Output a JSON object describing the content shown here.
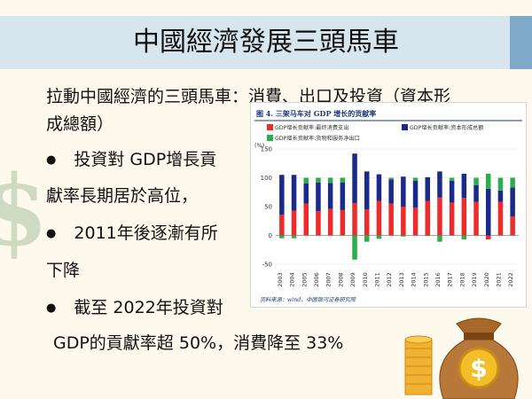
{
  "slide": {
    "title": "中國經濟發展三頭馬車",
    "intro_line1": "拉動中國經濟的三頭馬車：消費、出口及投資（資本形",
    "intro_line2": "成總額）",
    "bullet_symbol": "●",
    "bullet1_line1": "投資對 GDP增長貢",
    "bullet1_line2": "獻率長期居於高位，",
    "bullet2_line1": "2011年後逐漸有所",
    "bullet2_line2": "下降",
    "bullet3_line1": "截至 2022年投資對",
    "bullet3_line2": "GDP的貢獻率超 50%，消費降至 33%"
  },
  "colors": {
    "header_bar": "#d7e5ef",
    "consumption": "#ee2a2a",
    "investment": "#1a2a8c",
    "exports": "#2aae4a"
  },
  "icons": [
    "dollar-sign-icon",
    "money-bag-icon",
    "coin-stack-icon"
  ],
  "chart_data": {
    "type": "bar",
    "title": "图 4. 三架马车对 GDP 增长的贡献率",
    "ylabel": "(%)",
    "ylim": [
      -50,
      150
    ],
    "yticks": [
      -50,
      0,
      50,
      100,
      150
    ],
    "source": "资料来源：wind，中国银河证券研究院",
    "legend_position": "top",
    "categories": [
      "2003",
      "2004",
      "2005",
      "2006",
      "2007",
      "2008",
      "2009",
      "2010",
      "2011",
      "2012",
      "2013",
      "2014",
      "2015",
      "2016",
      "2017",
      "2018",
      "2019",
      "2020",
      "2021",
      "2022"
    ],
    "series": [
      {
        "name": "GDP增长贡献率:最终消费支出",
        "values": [
          36,
          43,
          55,
          42,
          46,
          44,
          56,
          45,
          60,
          55,
          50,
          48,
          60,
          66,
          57,
          65,
          58,
          -7,
          58,
          33
        ]
      },
      {
        "name": "GDP增长贡献率:资本形成总额",
        "values": [
          69,
          62,
          35,
          50,
          45,
          48,
          86,
          66,
          46,
          42,
          52,
          47,
          41,
          45,
          38,
          42,
          29,
          81,
          20,
          50
        ]
      },
      {
        "name": "GDP增长贡献率:货物和服务净出口",
        "values": [
          -5,
          -5,
          10,
          8,
          9,
          8,
          -42,
          -11,
          -6,
          3,
          -2,
          5,
          -1,
          -11,
          5,
          -7,
          13,
          26,
          22,
          17
        ]
      }
    ]
  }
}
